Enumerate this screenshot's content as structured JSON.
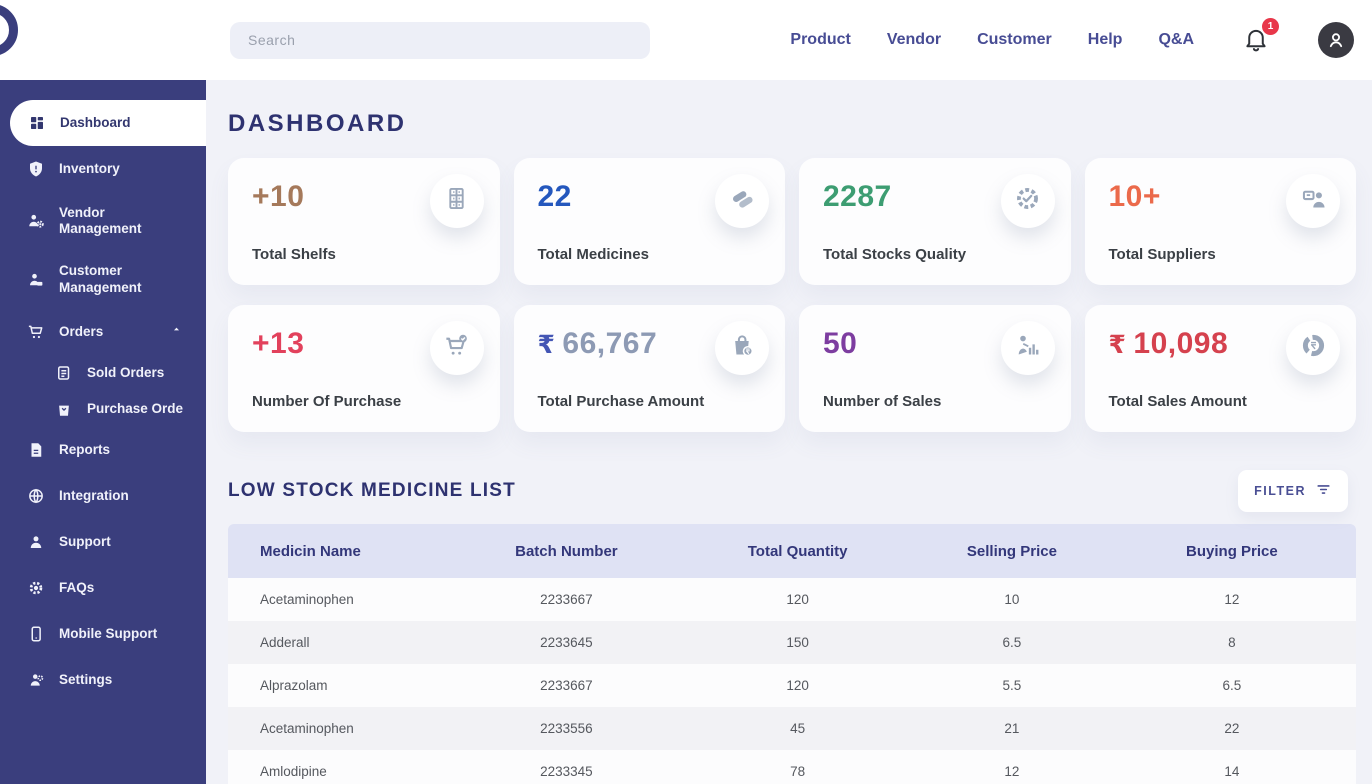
{
  "topbar": {
    "search_placeholder": "Search",
    "nav": [
      "Product",
      "Vendor",
      "Customer",
      "Help",
      "Q&A"
    ],
    "notification_count": "1"
  },
  "sidebar": {
    "items": [
      {
        "label": "Dashboard",
        "icon": "dashboard-icon",
        "active": true
      },
      {
        "label": "Inventory",
        "icon": "shield-icon"
      },
      {
        "label": "Vendor Management",
        "icon": "vendor-gear-icon"
      },
      {
        "label": "Customer Management",
        "icon": "customer-icon"
      },
      {
        "label": "Orders",
        "icon": "cart-icon",
        "expanded": true
      },
      {
        "label": "Sold Orders",
        "icon": "document-lines-icon",
        "sub": true
      },
      {
        "label": "Purchase Orde",
        "icon": "shopping-bag-icon",
        "sub": true
      },
      {
        "label": "Reports",
        "icon": "report-file-icon"
      },
      {
        "label": "Integration",
        "icon": "globe-icon"
      },
      {
        "label": "Support",
        "icon": "person-icon"
      },
      {
        "label": "FAQs",
        "icon": "gear-icon"
      },
      {
        "label": "Mobile Support",
        "icon": "mobile-phone-icon"
      },
      {
        "label": "Settings",
        "icon": "person-gear-icon"
      }
    ]
  },
  "main": {
    "title": "DASHBOARD",
    "stats": [
      {
        "value": "+10",
        "label": "Total Shelfs",
        "color": "#a5795b",
        "icon": "shelf-cabinet-icon"
      },
      {
        "value": "22",
        "label": "Total Medicines",
        "color": "#2457bd",
        "icon": "pills-icon"
      },
      {
        "value": "2287",
        "label": "Total Stocks Quality",
        "color": "#3d9d72",
        "icon": "quality-badge-icon"
      },
      {
        "value": "10+",
        "label": "Total Suppliers",
        "color": "#eb6a4b",
        "icon": "supplier-card-icon"
      },
      {
        "value": "+13",
        "label": "Number Of Purchase",
        "color": "#e2415c",
        "icon": "cart-check-icon"
      },
      {
        "currency": "₹",
        "currency_color": "#4355b4",
        "value": "66,767",
        "label": "Total Purchase Amount",
        "color": "#8d9ab4",
        "icon": "bag-rupee-icon"
      },
      {
        "value": "50",
        "label": "Number of Sales",
        "color": "#7d3da0",
        "icon": "person-chart-icon"
      },
      {
        "currency": "₹",
        "currency_color": "#d5414e",
        "value": "10,098",
        "label": "Total Sales Amount",
        "color": "#d5414e",
        "icon": "pie-rupee-icon"
      }
    ],
    "low_stock": {
      "title": "LOW STOCK MEDICINE LIST",
      "filter_label": "FILTER",
      "columns": [
        "Medicin Name",
        "Batch Number",
        "Total Quantity",
        "Selling Price",
        "Buying Price"
      ],
      "rows": [
        [
          "Acetaminophen",
          "2233667",
          "120",
          "10",
          "12"
        ],
        [
          "Adderall",
          "2233645",
          "150",
          "6.5",
          "8"
        ],
        [
          "Alprazolam",
          "2233667",
          "120",
          "5.5",
          "6.5"
        ],
        [
          "Acetaminophen",
          "2233556",
          "45",
          "21",
          "22"
        ],
        [
          "Amlodipine",
          "2233345",
          "78",
          "12",
          "14"
        ]
      ]
    }
  }
}
